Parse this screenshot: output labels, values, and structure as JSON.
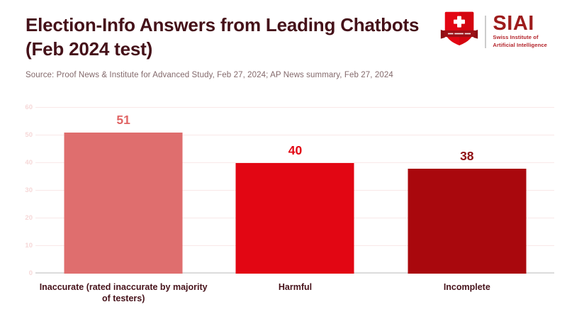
{
  "header": {
    "title": "Election-Info Answers from Leading Chatbots (Feb 2024 test)",
    "source": "Source: Proof News & Institute for Advanced Study, Feb 27, 2024; AP News summary, Feb 27, 2024"
  },
  "logo": {
    "name": "SIAI",
    "subtitle_line1": "Swiss Institute of",
    "subtitle_line2": "Artificial Intelligence",
    "icon": "swiss-shield-icon",
    "colors": {
      "shield_red": "#e30613",
      "banner_dark_red": "#9c1016",
      "cross_white": "#ffffff",
      "name_text": "#9d1c1c",
      "subtitle_text": "#b3232a",
      "divider_gray": "#cccccc"
    }
  },
  "chart_data": {
    "type": "bar",
    "title": "Election-Info Answers from Leading Chatbots (Feb 2024 test)",
    "categories": [
      "Inaccurate (rated inaccurate by majority of testers)",
      "Harmful",
      "Incomplete"
    ],
    "values": [
      51,
      40,
      38
    ],
    "bar_colors": [
      "#df6e6e",
      "#e20613",
      "#a9080d"
    ],
    "value_label_colors": [
      "#e06565",
      "#e20613",
      "#8f1013"
    ],
    "xlabel": "",
    "ylabel": "",
    "ylim": [
      0,
      60
    ],
    "yticks": [
      0,
      10,
      20,
      30,
      40,
      50,
      60
    ],
    "grid": "horizontal",
    "legend": "none",
    "tick_label_color": "#f6d8d8",
    "gridline_color": "#f9e8e8",
    "baseline_color": "#dcdcdc",
    "category_label_color": "#46121a",
    "title_color": "#451119",
    "source_color": "#83696b"
  }
}
